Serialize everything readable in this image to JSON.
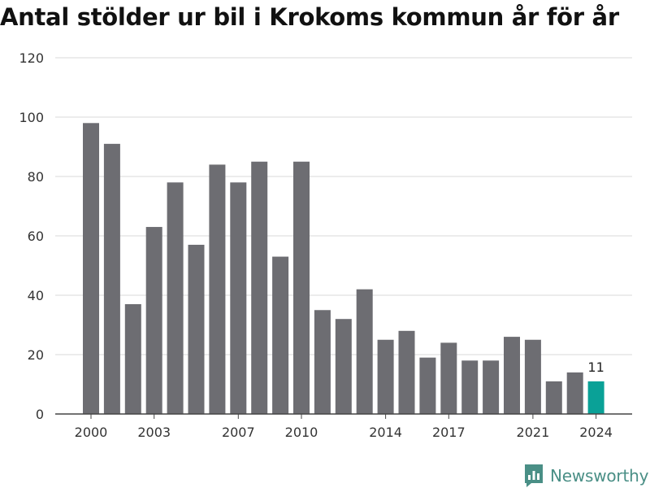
{
  "title": "Antal stölder ur bil i Krokoms kommun år för år",
  "brand": {
    "name": "Newsworthy",
    "icon": "newsworthy-logo-icon"
  },
  "colors": {
    "bar": "#6d6d72",
    "highlight": "#0aa197",
    "grid": "#d9d9d9",
    "axis": "#444444",
    "text": "#333333",
    "brand": "#4a8f86"
  },
  "chart_data": {
    "type": "bar",
    "title": "Antal stölder ur bil i Krokoms kommun år för år",
    "xlabel": "",
    "ylabel": "",
    "ylim": [
      0,
      120
    ],
    "yticks": [
      0,
      20,
      40,
      60,
      80,
      100,
      120
    ],
    "xtick_labels": [
      "2000",
      "2003",
      "2007",
      "2010",
      "2014",
      "2017",
      "2021",
      "2024"
    ],
    "categories": [
      "2000",
      "2001",
      "2002",
      "2003",
      "2004",
      "2005",
      "2006",
      "2007",
      "2008",
      "2009",
      "2010",
      "2011",
      "2012",
      "2013",
      "2014",
      "2015",
      "2016",
      "2017",
      "2018",
      "2019",
      "2020",
      "2021",
      "2022",
      "2023",
      "2024"
    ],
    "values": [
      98,
      91,
      37,
      63,
      78,
      57,
      84,
      78,
      85,
      53,
      85,
      35,
      32,
      42,
      25,
      28,
      19,
      24,
      18,
      18,
      26,
      25,
      11,
      14,
      11
    ],
    "highlight": {
      "category": "2024",
      "label": "11"
    },
    "grid": true
  }
}
